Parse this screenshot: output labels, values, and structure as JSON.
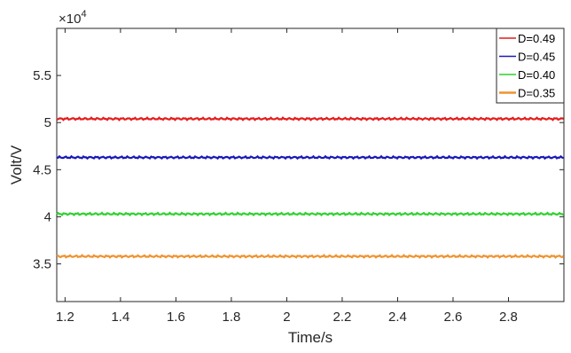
{
  "chart_data": {
    "type": "line",
    "title": "",
    "xlabel": "Time/s",
    "ylabel": "Volt/V",
    "y_exponent_label": "×10",
    "y_exponent_power": "4",
    "xlim": [
      1.17,
      3.0
    ],
    "ylim": [
      3.1,
      6.0
    ],
    "x_ticks": [
      1.2,
      1.4,
      1.6,
      1.8,
      2.0,
      2.2,
      2.4,
      2.6,
      2.8
    ],
    "x_tick_labels": [
      "1.2",
      "1.4",
      "1.6",
      "1.8",
      "2",
      "2.2",
      "2.4",
      "2.6",
      "2.8"
    ],
    "y_ticks": [
      3.5,
      4.0,
      4.5,
      5.0,
      5.5
    ],
    "y_tick_labels": [
      "3.5",
      "4",
      "4.5",
      "5",
      "5.5"
    ],
    "grid": false,
    "legend_position": "top-right",
    "ripple_amplitude": 0.012,
    "series": [
      {
        "name": "D=0.49",
        "color": "#e41c1c",
        "value": 5.04
      },
      {
        "name": "D=0.45",
        "color": "#1a1ab8",
        "value": 4.63
      },
      {
        "name": "D=0.40",
        "color": "#2fd12f",
        "value": 4.03
      },
      {
        "name": "D=0.35",
        "color": "#f0922e",
        "value": 3.58
      }
    ]
  }
}
